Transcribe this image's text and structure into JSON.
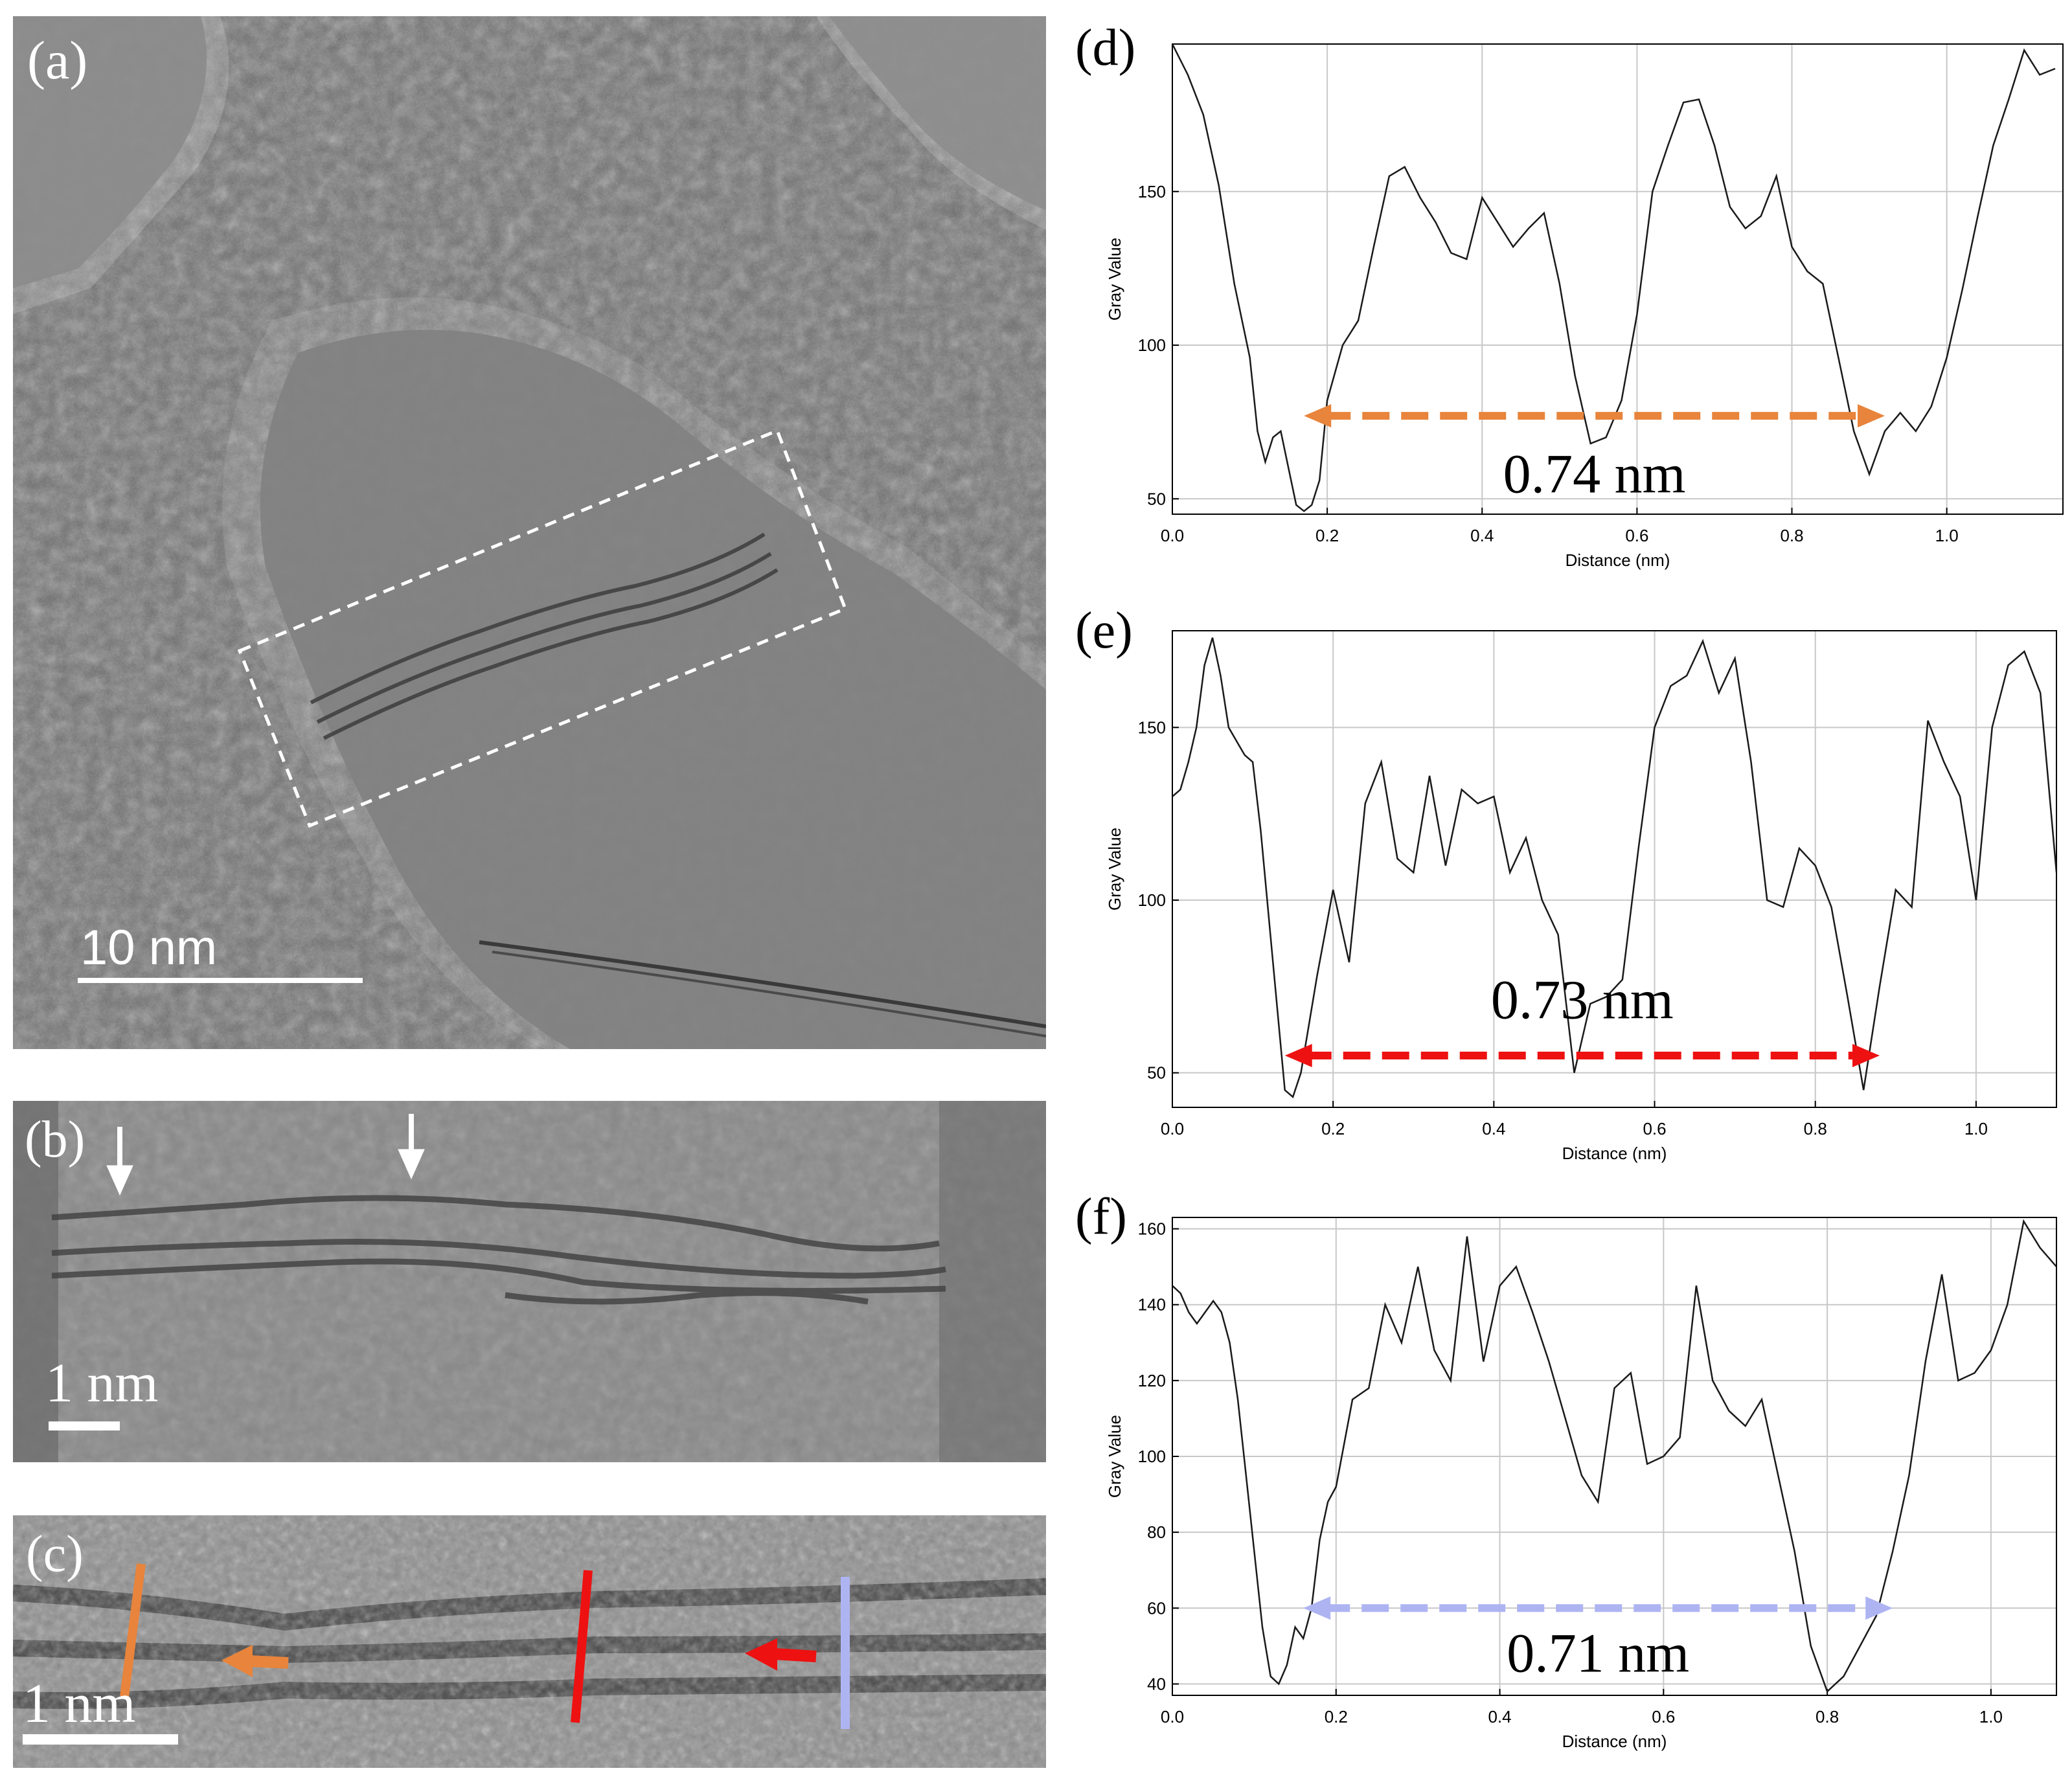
{
  "figure": {
    "panels": {
      "a": {
        "label": "(a)",
        "scale_bar": "10 nm"
      },
      "b": {
        "label": "(b)",
        "scale_bar": "1 nm"
      },
      "c": {
        "label": "(c)",
        "scale_bar": "1 nm"
      },
      "d": {
        "label": "(d)"
      },
      "e": {
        "label": "(e)"
      },
      "f": {
        "label": "(f)"
      }
    },
    "colors": {
      "orange": "#e8843c",
      "red": "#ee1111",
      "lavender": "#aeb4f2",
      "axis": "#000000",
      "grid": "#c8c8c8"
    }
  },
  "chart_data": [
    {
      "id": "d",
      "type": "line",
      "xlabel": "Distance (nm)",
      "ylabel": "Gray Value",
      "xlim": [
        0.0,
        1.15
      ],
      "ylim": [
        45,
        198
      ],
      "xticks": [
        "0.0",
        "0.2",
        "0.4",
        "0.6",
        "0.8",
        "1.0"
      ],
      "xtick_values": [
        0.0,
        0.2,
        0.4,
        0.6,
        0.8,
        1.0
      ],
      "yticks": [
        "50",
        "100",
        "150"
      ],
      "ytick_values": [
        50,
        100,
        150
      ],
      "annotation": {
        "text": "0.74 nm",
        "x_start": 0.17,
        "x_end": 0.92,
        "y": 77,
        "color": "#e8843c",
        "text_y": 58
      },
      "x": [
        0.0,
        0.02,
        0.04,
        0.06,
        0.08,
        0.1,
        0.11,
        0.12,
        0.13,
        0.14,
        0.15,
        0.16,
        0.17,
        0.18,
        0.19,
        0.2,
        0.22,
        0.24,
        0.26,
        0.28,
        0.3,
        0.32,
        0.34,
        0.36,
        0.38,
        0.4,
        0.42,
        0.44,
        0.46,
        0.48,
        0.5,
        0.52,
        0.54,
        0.56,
        0.58,
        0.6,
        0.62,
        0.64,
        0.66,
        0.68,
        0.7,
        0.72,
        0.74,
        0.76,
        0.78,
        0.8,
        0.82,
        0.84,
        0.86,
        0.88,
        0.9,
        0.92,
        0.94,
        0.96,
        0.98,
        1.0,
        1.02,
        1.04,
        1.06,
        1.08,
        1.1,
        1.12,
        1.14
      ],
      "y": [
        198,
        188,
        175,
        152,
        120,
        96,
        72,
        62,
        70,
        72,
        60,
        48,
        46,
        48,
        56,
        82,
        100,
        108,
        132,
        155,
        158,
        148,
        140,
        130,
        128,
        148,
        140,
        132,
        138,
        143,
        120,
        90,
        68,
        70,
        82,
        110,
        150,
        165,
        179,
        180,
        165,
        145,
        138,
        142,
        155,
        132,
        124,
        120,
        96,
        72,
        58,
        72,
        78,
        72,
        80,
        96,
        118,
        142,
        165,
        180,
        196,
        188,
        190
      ]
    },
    {
      "id": "e",
      "type": "line",
      "xlabel": "Distance (nm)",
      "ylabel": "Gray Value",
      "xlim": [
        0.0,
        1.1
      ],
      "ylim": [
        40,
        178
      ],
      "xticks": [
        "0.0",
        "0.2",
        "0.4",
        "0.6",
        "0.8",
        "1.0"
      ],
      "xtick_values": [
        0.0,
        0.2,
        0.4,
        0.6,
        0.8,
        1.0
      ],
      "yticks": [
        "50",
        "100",
        "150"
      ],
      "ytick_values": [
        50,
        100,
        150
      ],
      "annotation": {
        "text": "0.73 nm",
        "x_start": 0.14,
        "x_end": 0.88,
        "y": 55,
        "color": "#ee1111",
        "text_y": 71
      },
      "x": [
        0.0,
        0.01,
        0.02,
        0.03,
        0.04,
        0.05,
        0.06,
        0.07,
        0.08,
        0.09,
        0.1,
        0.11,
        0.12,
        0.13,
        0.14,
        0.15,
        0.16,
        0.18,
        0.2,
        0.22,
        0.24,
        0.26,
        0.28,
        0.3,
        0.32,
        0.34,
        0.36,
        0.38,
        0.4,
        0.42,
        0.44,
        0.46,
        0.48,
        0.5,
        0.52,
        0.54,
        0.56,
        0.58,
        0.6,
        0.62,
        0.64,
        0.66,
        0.68,
        0.7,
        0.72,
        0.74,
        0.76,
        0.78,
        0.8,
        0.82,
        0.84,
        0.86,
        0.88,
        0.9,
        0.92,
        0.94,
        0.96,
        0.98,
        1.0,
        1.02,
        1.04,
        1.06,
        1.08,
        1.1
      ],
      "y": [
        130,
        132,
        140,
        150,
        168,
        176,
        165,
        150,
        146,
        142,
        140,
        120,
        95,
        70,
        45,
        43,
        50,
        78,
        103,
        82,
        128,
        140,
        112,
        108,
        136,
        110,
        132,
        128,
        130,
        108,
        118,
        100,
        90,
        50,
        70,
        72,
        77,
        115,
        150,
        162,
        165,
        175,
        160,
        170,
        140,
        100,
        98,
        115,
        110,
        98,
        72,
        45,
        75,
        103,
        98,
        152,
        140,
        130,
        100,
        150,
        168,
        172,
        160,
        108
      ]
    },
    {
      "id": "f",
      "type": "line",
      "xlabel": "Distance (nm)",
      "ylabel": "Gray Value",
      "xlim": [
        0.0,
        1.08
      ],
      "ylim": [
        37,
        163
      ],
      "xticks": [
        "0.0",
        "0.2",
        "0.4",
        "0.6",
        "0.8",
        "1.0"
      ],
      "xtick_values": [
        0.0,
        0.2,
        0.4,
        0.6,
        0.8,
        1.0
      ],
      "yticks": [
        "40",
        "60",
        "80",
        "100",
        "120",
        "140",
        "160"
      ],
      "ytick_values": [
        40,
        60,
        80,
        100,
        120,
        140,
        160
      ],
      "annotation": {
        "text": "0.71 nm",
        "x_start": 0.16,
        "x_end": 0.88,
        "y": 60,
        "color": "#aeb4f2",
        "text_y": 48
      },
      "x": [
        0.0,
        0.01,
        0.02,
        0.03,
        0.04,
        0.05,
        0.06,
        0.07,
        0.08,
        0.09,
        0.1,
        0.11,
        0.12,
        0.13,
        0.14,
        0.15,
        0.16,
        0.17,
        0.18,
        0.19,
        0.2,
        0.22,
        0.24,
        0.26,
        0.28,
        0.3,
        0.32,
        0.34,
        0.36,
        0.38,
        0.4,
        0.42,
        0.44,
        0.46,
        0.48,
        0.5,
        0.52,
        0.54,
        0.56,
        0.58,
        0.6,
        0.62,
        0.64,
        0.66,
        0.68,
        0.7,
        0.72,
        0.74,
        0.76,
        0.78,
        0.8,
        0.82,
        0.84,
        0.86,
        0.88,
        0.9,
        0.92,
        0.94,
        0.96,
        0.98,
        1.0,
        1.02,
        1.04,
        1.06,
        1.08
      ],
      "y": [
        145,
        143,
        138,
        135,
        138,
        141,
        138,
        130,
        115,
        95,
        75,
        55,
        42,
        40,
        45,
        55,
        52,
        60,
        78,
        88,
        92,
        115,
        118,
        140,
        130,
        150,
        128,
        120,
        158,
        125,
        145,
        150,
        138,
        125,
        110,
        95,
        88,
        118,
        122,
        98,
        100,
        105,
        145,
        120,
        112,
        108,
        115,
        95,
        75,
        50,
        38,
        42,
        50,
        58,
        75,
        95,
        125,
        148,
        120,
        122,
        128,
        140,
        162,
        155,
        150
      ]
    }
  ]
}
